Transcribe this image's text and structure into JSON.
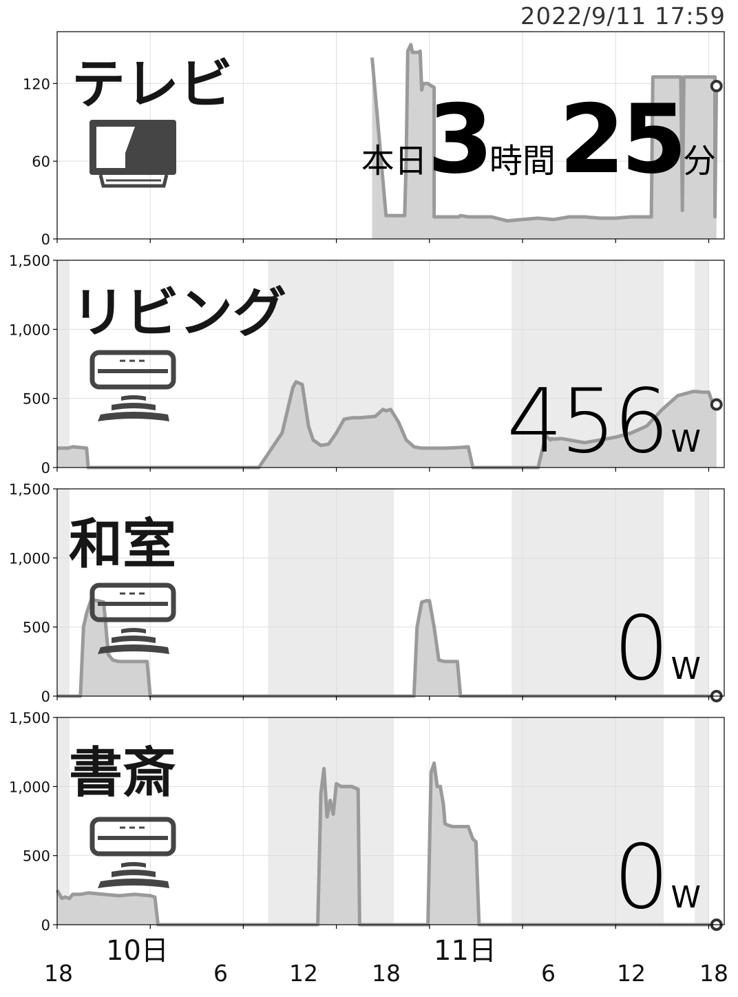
{
  "timestamp": "2022/9/11 17:59",
  "x_axis": {
    "hour_ticks": [
      "18",
      "6",
      "12",
      "18",
      "6",
      "12",
      "18"
    ],
    "day_labels": [
      "10日",
      "11日"
    ]
  },
  "panels": [
    {
      "title": "テレビ",
      "icon": "tv-icon",
      "summary": {
        "prefix": "本日",
        "hours": "3",
        "hours_unit": "時間",
        "minutes": "25",
        "minutes_unit": "分"
      }
    },
    {
      "title": "リビング",
      "icon": "air-conditioner-icon",
      "power_value": "456",
      "power_unit": "W"
    },
    {
      "title": "和室",
      "icon": "air-conditioner-icon",
      "power_value": "0",
      "power_unit": "W"
    },
    {
      "title": "書斎",
      "icon": "air-conditioner-icon",
      "power_value": "0",
      "power_unit": "W"
    }
  ],
  "colors": {
    "line": "#9a9a9a",
    "fill": "#d3d3d3",
    "shade": "#ebebeb",
    "grid": "#dddddd",
    "dot": "#333333"
  },
  "chart_data": [
    {
      "type": "area",
      "title": "テレビ",
      "x_unit": "hours since 2022/9/9 18:00",
      "ylim": [
        0,
        160
      ],
      "yticks": [
        "0",
        "60",
        "120"
      ],
      "grid": true,
      "series": [
        {
          "x": [
            20.3,
            20.3,
            21.2,
            21.2,
            22.4,
            22.5,
            22.6,
            22.8,
            22.9,
            23.3,
            23.4,
            23.5,
            23.6,
            23.7,
            23.9,
            24.0,
            24.3,
            24.3,
            25.8,
            25.9,
            26.0,
            26.5,
            27.0,
            28.0,
            29.0,
            30.0,
            31.0,
            32.0,
            33.0,
            34.0,
            35.0,
            36.0,
            37.0,
            38.0,
            38.3,
            38.4,
            38.9,
            39.0,
            39.5,
            39.6,
            40.2,
            40.3,
            40.4,
            40.5,
            40.6,
            41.1,
            41.2,
            42.2,
            42.4,
            42.4,
            42.5,
            42.5
          ],
          "y": [
            140,
            140,
            18,
            18,
            18,
            60,
            145,
            150,
            144,
            144,
            145,
            115,
            120,
            120,
            120,
            119,
            117,
            17,
            17,
            17,
            18,
            17,
            17,
            17,
            14,
            15,
            16,
            15,
            17,
            17,
            16,
            16,
            17,
            17,
            17,
            125,
            125,
            125,
            125,
            125,
            125,
            22,
            125,
            125,
            125,
            125,
            125,
            125,
            125,
            17,
            121,
            118
          ]
        }
      ],
      "current_value": 118
    },
    {
      "type": "area",
      "title": "リビング",
      "x_unit": "hours since 2022/9/9 18:00",
      "ylim": [
        0,
        1500
      ],
      "yticks": [
        "0",
        "500",
        "1,000",
        "1,500"
      ],
      "grid": true,
      "series": [
        {
          "x": [
            0,
            0.7,
            1.0,
            1.5,
            1.9,
            2.0,
            2.5,
            5.0,
            8.0,
            13.0,
            14.5,
            15.2,
            15.4,
            15.8,
            16.0,
            16.2,
            16.5,
            17.0,
            17.5,
            18.0,
            18.5,
            19.0,
            19.5,
            20.0,
            20.5,
            21.0,
            21.2,
            21.5,
            22.0,
            22.5,
            23.0,
            23.5,
            24.0,
            25.0,
            26.0,
            26.5,
            26.8,
            27.1,
            27.3,
            28.0,
            29.0,
            30.0,
            31.0,
            31.5,
            31.8,
            31.9,
            32.0,
            32.5,
            33.0,
            34.0,
            35.0,
            36.0,
            37.0,
            38.0,
            39.0,
            40.0,
            41.0,
            41.2,
            41.6,
            42.0,
            42.3,
            42.5
          ],
          "y": [
            140,
            140,
            150,
            145,
            140,
            0,
            0,
            0,
            0,
            0,
            250,
            580,
            620,
            600,
            450,
            300,
            200,
            160,
            170,
            250,
            350,
            360,
            360,
            365,
            370,
            420,
            410,
            420,
            330,
            200,
            150,
            140,
            140,
            140,
            145,
            150,
            0,
            0,
            0,
            0,
            0,
            0,
            0,
            230,
            200,
            210,
            205,
            210,
            200,
            180,
            200,
            220,
            250,
            300,
            420,
            520,
            550,
            550,
            545,
            545,
            450,
            456
          ],
          "current_value": 456
        }
      ],
      "shaded_ranges": [
        [
          0,
          0.8
        ],
        [
          13.6,
          21.7
        ],
        [
          29.3,
          39.1
        ],
        [
          41.1,
          42.0
        ]
      ]
    },
    {
      "type": "area",
      "title": "和室",
      "x_unit": "hours since 2022/9/9 18:00",
      "ylim": [
        0,
        1500
      ],
      "yticks": [
        "0",
        "500",
        "1,000",
        "1,500"
      ],
      "grid": true,
      "series": [
        {
          "x": [
            0,
            1.5,
            1.7,
            1.9,
            2.2,
            2.6,
            3.0,
            3.3,
            3.6,
            4.0,
            5.0,
            5.6,
            5.8,
            6.0,
            10.0,
            15.0,
            20.0,
            22.0,
            23.0,
            23.2,
            23.5,
            23.8,
            24.0,
            24.3,
            24.6,
            25.0,
            25.4,
            25.7,
            25.8,
            26.0,
            30.0,
            35.0,
            40.0,
            42.5
          ],
          "y": [
            0,
            0,
            500,
            600,
            700,
            690,
            680,
            300,
            260,
            250,
            250,
            250,
            250,
            0,
            0,
            0,
            0,
            0,
            0,
            500,
            680,
            690,
            690,
            500,
            260,
            250,
            250,
            250,
            250,
            0,
            0,
            0,
            0,
            0
          ],
          "current_value": 0
        }
      ],
      "shaded_ranges": [
        [
          0,
          0.8
        ],
        [
          13.6,
          21.7
        ],
        [
          29.3,
          39.1
        ],
        [
          41.1,
          42.0
        ]
      ]
    },
    {
      "type": "area",
      "title": "書斎",
      "x_unit": "hours since 2022/9/9 18:00",
      "ylim": [
        0,
        1500
      ],
      "yticks": [
        "0",
        "500",
        "1,000",
        "1,500"
      ],
      "grid": true,
      "series": [
        {
          "x": [
            0,
            0.3,
            0.5,
            0.8,
            1.0,
            1.5,
            2.0,
            3.0,
            4.0,
            5.0,
            6.0,
            6.3,
            6.5,
            7.0,
            10.0,
            15.0,
            16.8,
            17.0,
            17.2,
            17.4,
            17.6,
            17.8,
            18.0,
            18.3,
            18.6,
            19.0,
            19.4,
            19.5,
            20.0,
            23.0,
            23.9,
            24.1,
            24.3,
            24.5,
            24.7,
            24.9,
            25.0,
            25.2,
            25.5,
            26.0,
            26.5,
            26.8,
            27.0,
            27.2,
            28.0,
            30.0,
            35.0,
            40.0,
            42.5
          ],
          "y": [
            250,
            190,
            200,
            190,
            220,
            220,
            230,
            220,
            210,
            220,
            210,
            200,
            0,
            0,
            0,
            0,
            0,
            950,
            1130,
            780,
            900,
            800,
            1020,
            1000,
            1000,
            1000,
            980,
            0,
            0,
            0,
            0,
            1100,
            1170,
            1000,
            1000,
            870,
            730,
            720,
            710,
            710,
            710,
            620,
            600,
            0,
            0,
            0,
            0,
            0,
            0
          ],
          "current_value": 0
        }
      ],
      "shaded_ranges": [
        [
          0,
          0.8
        ],
        [
          13.6,
          21.7
        ],
        [
          29.3,
          39.1
        ],
        [
          41.1,
          42.0
        ]
      ]
    }
  ]
}
